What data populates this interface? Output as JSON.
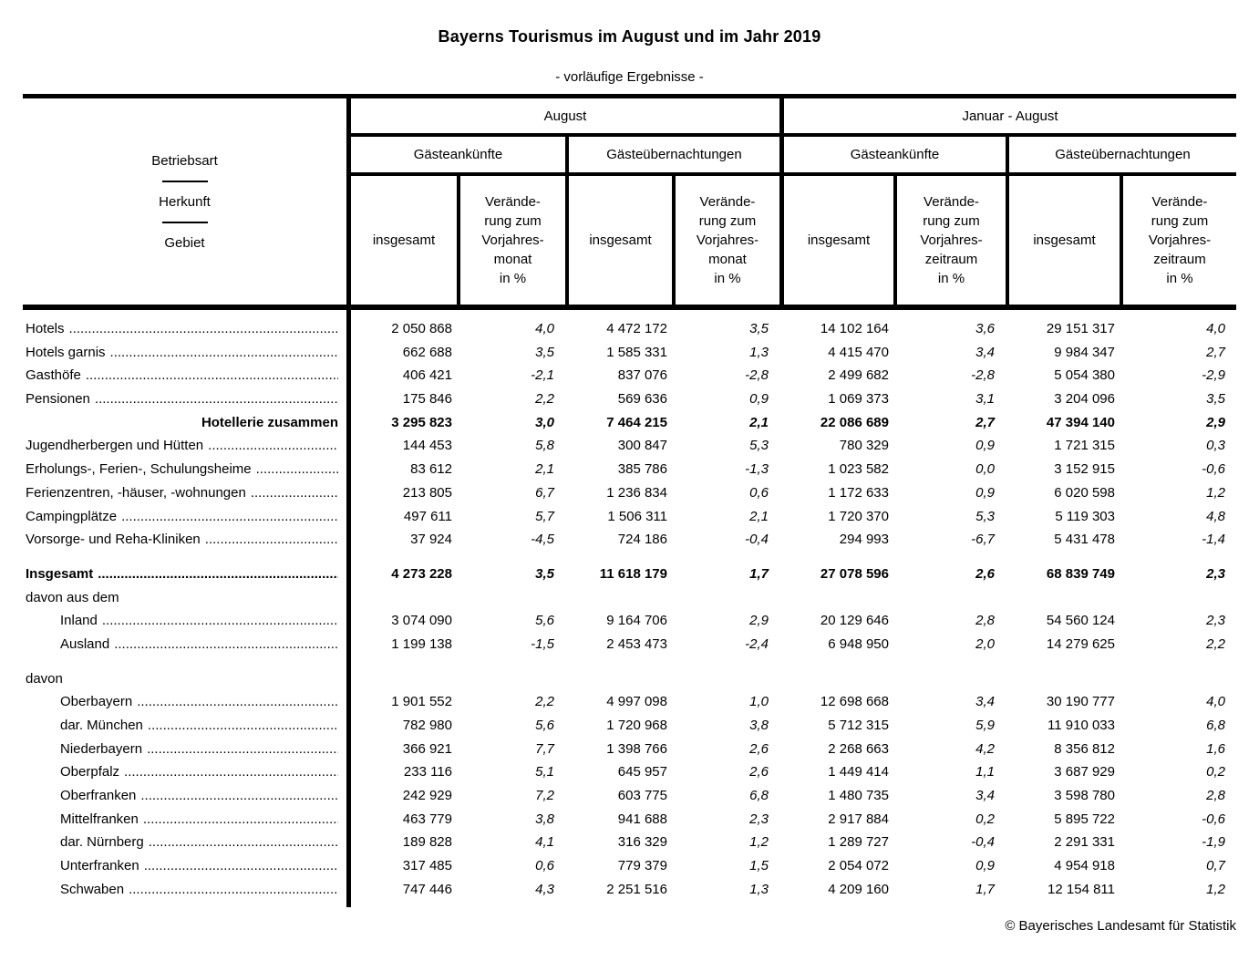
{
  "page": {
    "title": "Bayerns Tourismus im August und im Jahr 2019",
    "subtitle": "- vorläufige Ergebnisse -",
    "footer": "© Bayerisches Landesamt für Statistik"
  },
  "table": {
    "stub": [
      "Betriebsart",
      "Herkunft",
      "Gebiet"
    ],
    "groups": {
      "august": "August",
      "jan_aug": "Januar - August"
    },
    "col_arrivals": "Gästeankünfte",
    "col_nights": "Gästeübernachtungen",
    "col_total": "insgesamt",
    "col_change_month": "Verände-\nrung zum\nVorjahres-\nmonat\nin %",
    "col_change_period": "Verände-\nrung zum\nVorjahres-\nzeitraum\nin %",
    "column_keys": [
      "aug-arrivals-total",
      "aug-arrivals-change",
      "aug-nights-total",
      "aug-nights-change",
      "ja-arrivals-total",
      "ja-arrivals-change",
      "ja-nights-total",
      "ja-nights-change"
    ],
    "rows": [
      {
        "label": "Hotels",
        "type": "data",
        "indent": false,
        "values": [
          "2 050 868",
          "4,0",
          "4 472 172",
          "3,5",
          "14 102 164",
          "3,6",
          "29 151 317",
          "4,0"
        ]
      },
      {
        "label": "Hotels garnis",
        "type": "data",
        "indent": false,
        "values": [
          "662 688",
          "3,5",
          "1 585 331",
          "1,3",
          "4 415 470",
          "3,4",
          "9 984 347",
          "2,7"
        ]
      },
      {
        "label": "Gasthöfe",
        "type": "data",
        "indent": false,
        "values": [
          "406 421",
          "-2,1",
          "837 076",
          "-2,8",
          "2 499 682",
          "-2,8",
          "5 054 380",
          "-2,9"
        ]
      },
      {
        "label": "Pensionen",
        "type": "data",
        "indent": false,
        "values": [
          "175 846",
          "2,2",
          "569 636",
          "0,9",
          "1 069 373",
          "3,1",
          "3 204 096",
          "3,5"
        ]
      },
      {
        "label": "Hotellerie zusammen",
        "type": "sum",
        "indent": false,
        "values": [
          "3 295 823",
          "3,0",
          "7 464 215",
          "2,1",
          "22 086 689",
          "2,7",
          "47 394 140",
          "2,9"
        ]
      },
      {
        "label": "Jugendherbergen und Hütten",
        "type": "data",
        "indent": false,
        "values": [
          "144 453",
          "5,8",
          "300 847",
          "5,3",
          "780 329",
          "0,9",
          "1 721 315",
          "0,3"
        ]
      },
      {
        "label": "Erholungs-, Ferien-, Schulungsheime",
        "type": "data",
        "indent": false,
        "values": [
          "83 612",
          "2,1",
          "385 786",
          "-1,3",
          "1 023 582",
          "0,0",
          "3 152 915",
          "-0,6"
        ]
      },
      {
        "label": "Ferienzentren, -häuser, -wohnungen",
        "type": "data",
        "indent": false,
        "values": [
          "213 805",
          "6,7",
          "1 236 834",
          "0,6",
          "1 172 633",
          "0,9",
          "6 020 598",
          "1,2"
        ]
      },
      {
        "label": "Campingplätze",
        "type": "data",
        "indent": false,
        "values": [
          "497 611",
          "5,7",
          "1 506 311",
          "2,1",
          "1 720 370",
          "5,3",
          "5 119 303",
          "4,8"
        ]
      },
      {
        "label": "Vorsorge- und Reha-Kliniken",
        "type": "data",
        "indent": false,
        "values": [
          "37 924",
          "-4,5",
          "724 186",
          "-0,4",
          "294 993",
          "-6,7",
          "5 431 478",
          "-1,4"
        ]
      },
      {
        "label": "Insgesamt",
        "type": "total",
        "indent": false,
        "gap_before": true,
        "values": [
          "4 273 228",
          "3,5",
          "11 618 179",
          "1,7",
          "27 078 596",
          "2,6",
          "68 839 749",
          "2,3"
        ]
      },
      {
        "label": "davon aus dem",
        "type": "section",
        "indent": false,
        "values": []
      },
      {
        "label": "Inland",
        "type": "data",
        "indent": true,
        "values": [
          "3 074 090",
          "5,6",
          "9 164 706",
          "2,9",
          "20 129 646",
          "2,8",
          "54 560 124",
          "2,3"
        ]
      },
      {
        "label": "Ausland",
        "type": "data",
        "indent": true,
        "values": [
          "1 199 138",
          "-1,5",
          "2 453 473",
          "-2,4",
          "6 948 950",
          "2,0",
          "14 279 625",
          "2,2"
        ]
      },
      {
        "label": "davon",
        "type": "section",
        "indent": false,
        "gap_before": true,
        "values": []
      },
      {
        "label": "Oberbayern",
        "type": "data",
        "indent": true,
        "values": [
          "1 901 552",
          "2,2",
          "4 997 098",
          "1,0",
          "12 698 668",
          "3,4",
          "30 190 777",
          "4,0"
        ]
      },
      {
        "label": "dar.  München",
        "type": "data",
        "indent": true,
        "values": [
          "782 980",
          "5,6",
          "1 720 968",
          "3,8",
          "5 712 315",
          "5,9",
          "11 910 033",
          "6,8"
        ]
      },
      {
        "label": "Niederbayern",
        "type": "data",
        "indent": true,
        "values": [
          "366 921",
          "7,7",
          "1 398 766",
          "2,6",
          "2 268 663",
          "4,2",
          "8 356 812",
          "1,6"
        ]
      },
      {
        "label": "Oberpfalz",
        "type": "data",
        "indent": true,
        "values": [
          "233 116",
          "5,1",
          "645 957",
          "2,6",
          "1 449 414",
          "1,1",
          "3 687 929",
          "0,2"
        ]
      },
      {
        "label": "Oberfranken",
        "type": "data",
        "indent": true,
        "values": [
          "242 929",
          "7,2",
          "603 775",
          "6,8",
          "1 480 735",
          "3,4",
          "3 598 780",
          "2,8"
        ]
      },
      {
        "label": "Mittelfranken",
        "type": "data",
        "indent": true,
        "values": [
          "463 779",
          "3,8",
          "941 688",
          "2,3",
          "2 917 884",
          "0,2",
          "5 895 722",
          "-0,6"
        ]
      },
      {
        "label": "dar.  Nürnberg",
        "type": "data",
        "indent": true,
        "values": [
          "189 828",
          "4,1",
          "316 329",
          "1,2",
          "1 289 727",
          "-0,4",
          "2 291 331",
          "-1,9"
        ]
      },
      {
        "label": "Unterfranken",
        "type": "data",
        "indent": true,
        "values": [
          "317 485",
          "0,6",
          "779 379",
          "1,5",
          "2 054 072",
          "0,9",
          "4 954 918",
          "0,7"
        ]
      },
      {
        "label": "Schwaben",
        "type": "data",
        "indent": true,
        "values": [
          "747 446",
          "4,3",
          "2 251 516",
          "1,3",
          "4 209 160",
          "1,7",
          "12 154 811",
          "1,2"
        ]
      }
    ]
  }
}
